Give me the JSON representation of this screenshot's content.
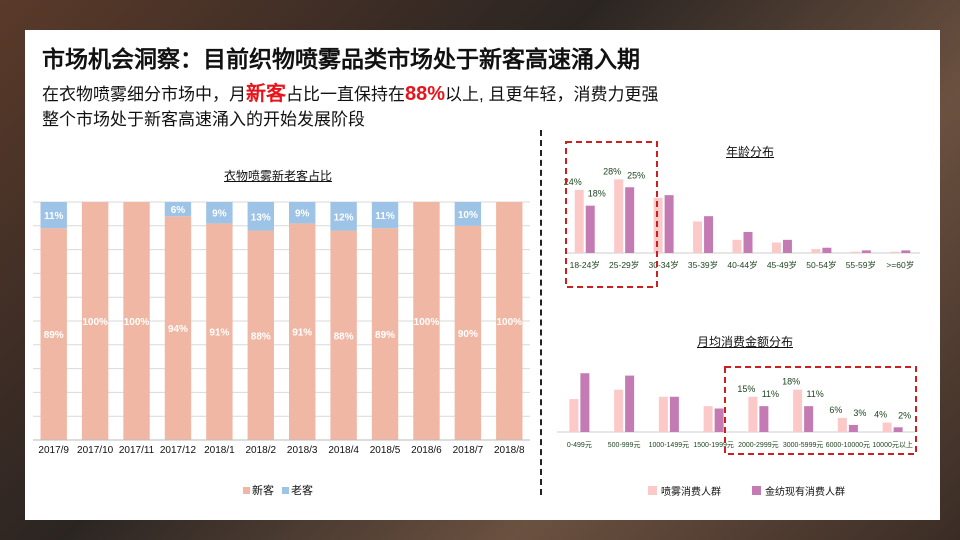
{
  "header": {
    "title": "市场机会洞察：目前织物喷雾品类市场处于新客高速涌入期",
    "line1_a": "在衣物喷雾细分市场中，月",
    "line1_hl1": "新客",
    "line1_b": "占比一直保持在",
    "line1_hl2": "88%",
    "line1_c": "以上, 且更年轻，消费力更强",
    "line2": "整个市场处于新客高速涌入的开始发展阶段"
  },
  "colors": {
    "new": "#f0b8a4",
    "old": "#9dc3e6",
    "spray": "#fcc9c9",
    "home": "#c47ab2",
    "highlight": "#cc1f1f",
    "label": "#1e4620"
  },
  "chart_data": [
    {
      "type": "bar",
      "stacked": true,
      "percent": true,
      "title": "衣物喷雾新老客占比",
      "categories": [
        "2017/9",
        "2017/10",
        "2017/11",
        "2017/12",
        "2018/1",
        "2018/2",
        "2018/3",
        "2018/4",
        "2018/5",
        "2018/6",
        "2018/7",
        "2018/8"
      ],
      "series": [
        {
          "name": "新客",
          "values": [
            89,
            100,
            100,
            94,
            91,
            88,
            91,
            88,
            89,
            100,
            90,
            100
          ],
          "labels": [
            "89%",
            "100%",
            "100%",
            "94%",
            "91%",
            "88%",
            "91%",
            "88%",
            "89%",
            "100%",
            "90%",
            "100%"
          ]
        },
        {
          "name": "老客",
          "values": [
            11,
            0,
            0,
            6,
            9,
            13,
            9,
            12,
            11,
            0,
            10,
            0
          ],
          "labels": [
            "11%",
            "",
            "",
            "6%",
            "9%",
            "13%",
            "9%",
            "12%",
            "11%",
            "",
            "10%",
            ""
          ]
        }
      ],
      "ylim": [
        0,
        100
      ],
      "grid": true,
      "legend": "bottom"
    },
    {
      "type": "bar",
      "title": "年龄分布",
      "categories": [
        "18-24岁",
        "25-29岁",
        "30-34岁",
        "35-39岁",
        "40-44岁",
        "45-49岁",
        "50-54岁",
        "55-59岁",
        ">=60岁"
      ],
      "series": [
        {
          "name": "喷雾消费人群",
          "values": [
            24,
            28,
            21,
            12,
            5,
            4,
            1.5,
            0.5,
            0.5
          ],
          "labels": [
            "24%",
            "28%",
            "",
            "",
            "",
            "",
            "",
            "",
            ""
          ]
        },
        {
          "name": "金纺现有消费人群",
          "values": [
            18,
            25,
            22,
            14,
            8,
            5,
            2,
            1,
            1
          ],
          "labels": [
            "18%",
            "25%",
            "",
            "",
            "",
            "",
            "",
            "",
            ""
          ]
        }
      ],
      "highlight": [
        "18-24岁",
        "25-29岁"
      ]
    },
    {
      "type": "bar",
      "title": "月均消费金额分布",
      "categories": [
        "0-499元",
        "500-999元",
        "1000-1499元",
        "1500-1999元",
        "2000-2999元",
        "3000-5999元",
        "6000-10000元",
        "10000元以上"
      ],
      "series": [
        {
          "name": "喷雾消费人群",
          "values": [
            14,
            18,
            15,
            11,
            15,
            18,
            6,
            4
          ],
          "labels": [
            "",
            "",
            "",
            "",
            "15%",
            "18%",
            "6%",
            "4%"
          ]
        },
        {
          "name": "金纺现有消费人群",
          "values": [
            25,
            24,
            15,
            10,
            11,
            11,
            3,
            2
          ],
          "labels": [
            "",
            "",
            "",
            "",
            "11%",
            "11%",
            "3%",
            "2%"
          ]
        }
      ],
      "highlight": [
        "2000-2999元",
        "3000-5999元",
        "6000-10000元",
        "10000元以上"
      ],
      "legend": "bottom"
    }
  ]
}
